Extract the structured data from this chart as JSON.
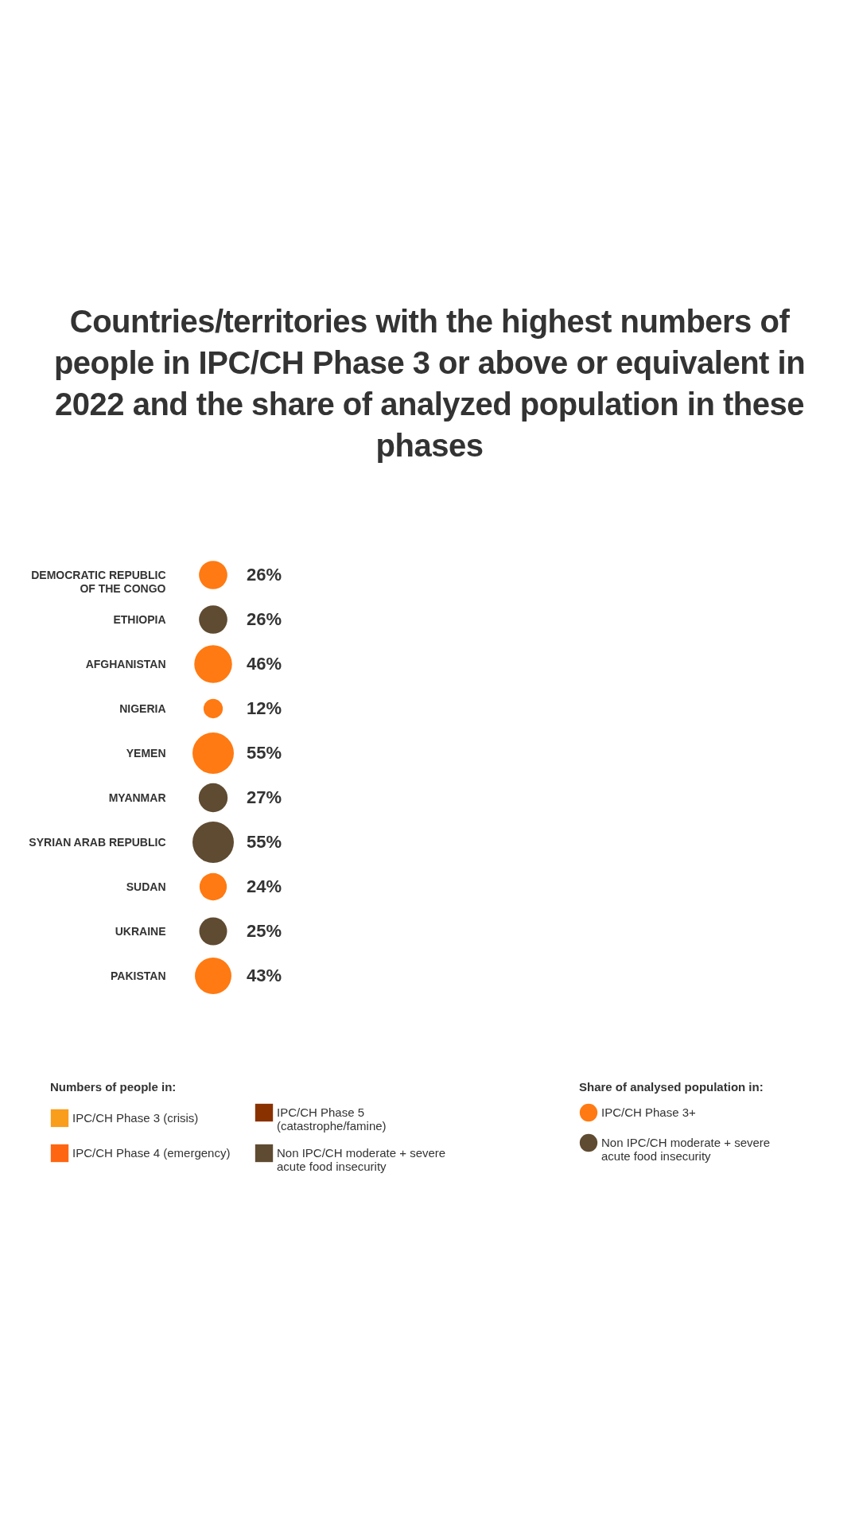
{
  "chart_data": {
    "type": "other",
    "title": "Countries/territories with the highest numbers of people in IPC/CH Phase 3 or above or equivalent in 2022 and the share of analyzed population in these phases",
    "categories": [
      "DEMOCRATIC REPUBLIC OF THE CONGO",
      "ETHIOPIA",
      "AFGHANISTAN",
      "NIGERIA",
      "YEMEN",
      "MYANMAR",
      "SYRIAN ARAB REPUBLIC",
      "SUDAN",
      "UKRAINE",
      "PAKISTAN"
    ],
    "legend_title": "Share of analysed population in:",
    "annotations": [
      "Numbers of people in:"
    ],
    "legend": "bottom",
    "series": [
      {
        "name": "IPC/CH Phase 3 (crisis)",
        "color": "#f99d1c",
        "values": [
          null,
          null,
          null,
          null,
          null,
          null,
          null,
          null,
          null,
          null
        ]
      },
      {
        "name": "IPC/CH Phase 4 (emergency)",
        "color": "#ff6611",
        "values": [
          null,
          null,
          null,
          null,
          null,
          null,
          null,
          null,
          null,
          null
        ]
      },
      {
        "name": "IPC/CH Phase 5 (catastrophe/famine)",
        "color": "#8a3100",
        "values": [
          null,
          null,
          null,
          null,
          null,
          null,
          null,
          null,
          null,
          null
        ]
      },
      {
        "name": "Non IPC/CH moderate + severe acute food insecurity",
        "color": "#5f4b32",
        "values": [
          null,
          null,
          null,
          null,
          null,
          null,
          null,
          null,
          null,
          null
        ]
      },
      {
        "name": "IPC/CH Phase 3+",
        "color": "#ff7a12",
        "type": "scatter",
        "values": [
          26,
          null,
          46,
          12,
          55,
          null,
          null,
          24,
          null,
          43
        ],
        "value_labels": [
          "26%",
          null,
          "46%",
          "12%",
          "55%",
          null,
          null,
          "24%",
          null,
          "43%"
        ]
      },
      {
        "name": "Non IPC/CH moderate + severe acute food insecurity",
        "color": "#5f4b32",
        "type": "scatter",
        "values": [
          null,
          26,
          null,
          null,
          null,
          27,
          55,
          null,
          25,
          null
        ],
        "value_labels": [
          null,
          "26%",
          null,
          null,
          null,
          "27%",
          "55%",
          null,
          "25%",
          null
        ]
      }
    ]
  }
}
